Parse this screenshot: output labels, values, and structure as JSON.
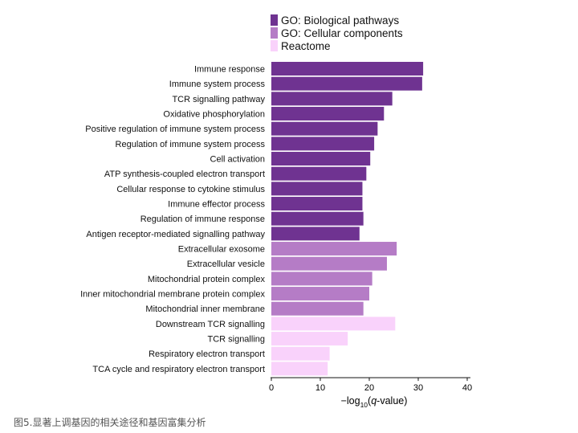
{
  "chart_data": {
    "type": "bar",
    "orientation": "horizontal",
    "categories": [
      "Immune response",
      "Immune system process",
      "TCR signalling pathway",
      "Oxidative phosphorylation",
      "Positive regulation of immune system process",
      "Regulation of immune system process",
      "Cell activation",
      "ATP synthesis-coupled electron transport",
      "Cellular response to cytokine stimulus",
      "Immune effector process",
      "Regulation of immune response",
      "Antigen receptor-mediated signalling pathway",
      "Extracellular exosome",
      "Extracellular vesicle",
      "Mitochondrial protein complex",
      "Inner mitochondrial membrane protein complex",
      "Mitochondrial inner membrane",
      "Downstream TCR signalling",
      "TCR signalling",
      "Respiratory electron transport",
      "TCA cycle and respiratory electron transport"
    ],
    "values": [
      31,
      30.8,
      24.7,
      23,
      21.7,
      21,
      20.2,
      19.4,
      18.6,
      18.6,
      18.8,
      18,
      25.6,
      23.6,
      20.6,
      20,
      18.8,
      25.3,
      15.6,
      11.9,
      11.5
    ],
    "groups": [
      0,
      0,
      0,
      0,
      0,
      0,
      0,
      0,
      0,
      0,
      0,
      0,
      1,
      1,
      1,
      1,
      1,
      2,
      2,
      2,
      2
    ],
    "series": [
      {
        "name": "GO: Biological pathways",
        "color": "#6f3391"
      },
      {
        "name": "GO: Cellular components",
        "color": "#b57cc6"
      },
      {
        "name": "Reactome",
        "color": "#f9d2fb"
      }
    ],
    "xlabel_prefix": "−log",
    "xlabel_sub": "10",
    "xlabel_open": "(",
    "xlabel_italic": "q",
    "xlabel_suffix": "-value)",
    "xlim": [
      0,
      40
    ],
    "xticks": [
      0,
      10,
      20,
      30,
      40
    ],
    "legend_position": "top"
  },
  "caption": "图5.显著上调基因的相关途径和基因富集分析"
}
